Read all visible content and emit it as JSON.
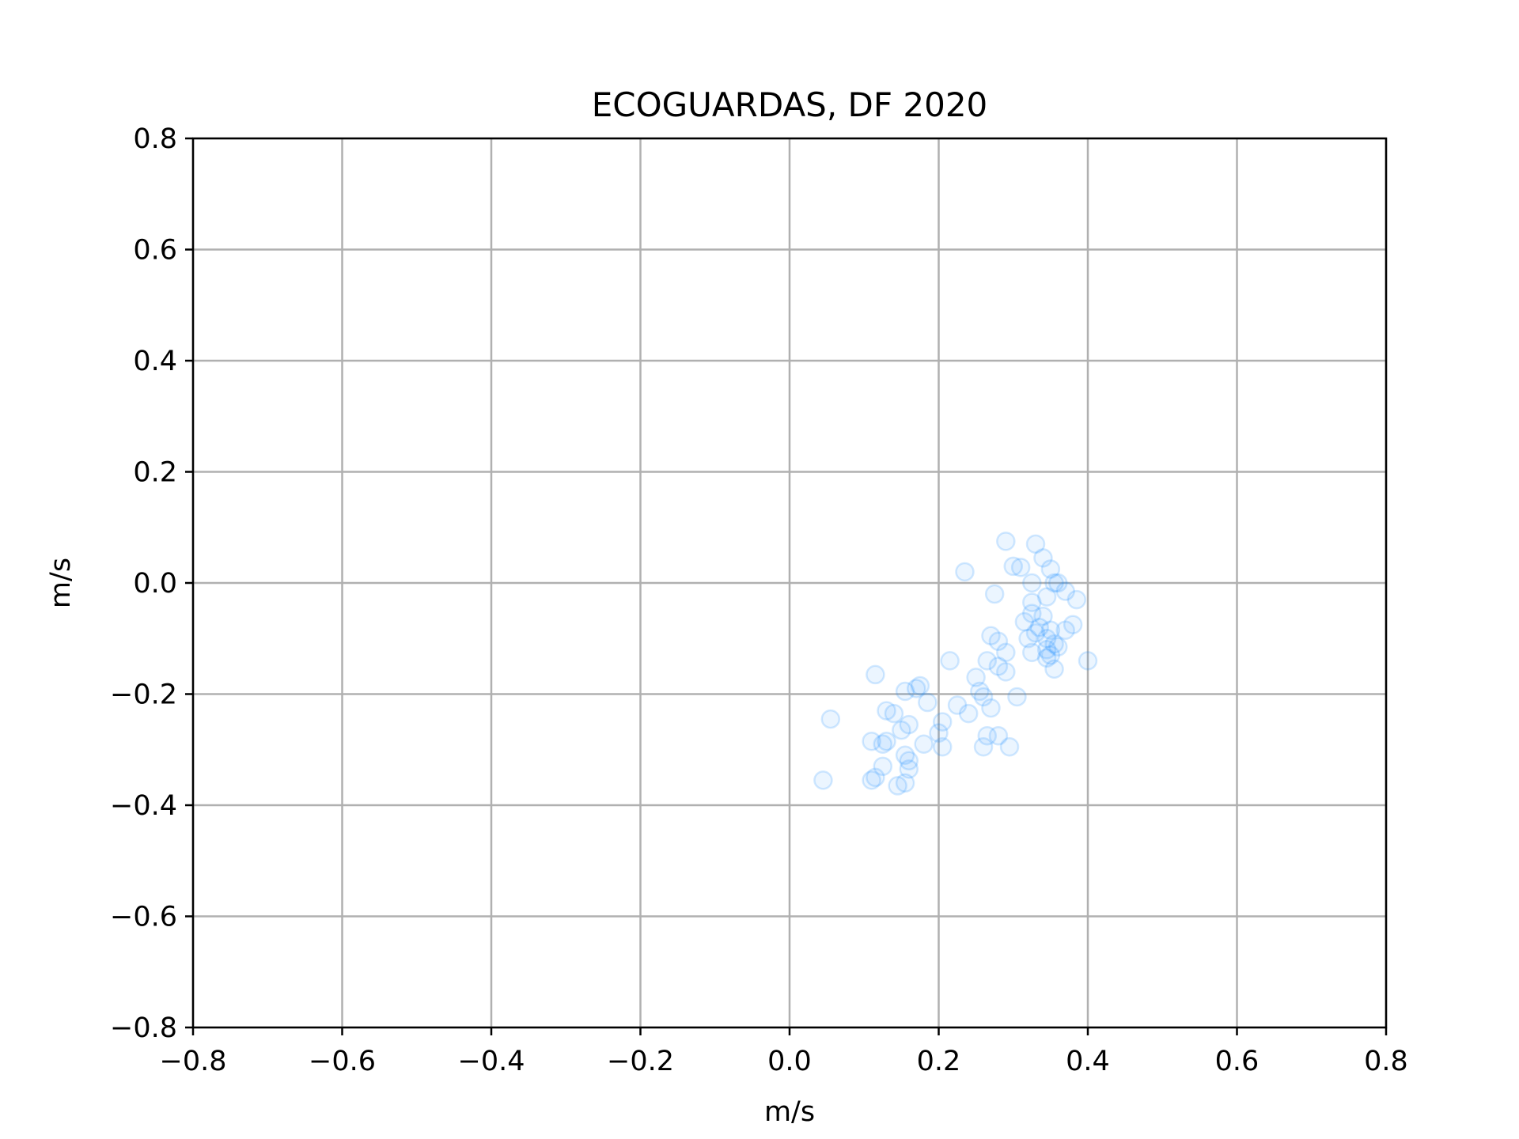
{
  "chart_data": {
    "type": "scatter",
    "title": "ECOGUARDAS, DF 2020",
    "xlabel": "m/s",
    "ylabel": "m/s",
    "xlim": [
      -0.8,
      0.8
    ],
    "ylim": [
      -0.8,
      0.8
    ],
    "xticks": [
      -0.8,
      -0.6,
      -0.4,
      -0.2,
      0.0,
      0.2,
      0.4,
      0.6,
      0.8
    ],
    "yticks": [
      -0.8,
      -0.6,
      -0.4,
      -0.2,
      0.0,
      0.2,
      0.4,
      0.6,
      0.8
    ],
    "xtick_labels": [
      "−0.8",
      "−0.6",
      "−0.4",
      "−0.2",
      "0.0",
      "0.2",
      "0.4",
      "0.6",
      "0.8"
    ],
    "ytick_labels": [
      "−0.8",
      "−0.6",
      "−0.4",
      "−0.2",
      "0.0",
      "0.2",
      "0.4",
      "0.6",
      "0.8"
    ],
    "grid": true,
    "marker": "hollow-circle",
    "marker_color": "#1e90ff",
    "marker_alpha": 0.15,
    "points": [
      [
        0.29,
        0.075
      ],
      [
        0.33,
        0.07
      ],
      [
        0.34,
        0.045
      ],
      [
        0.35,
        0.025
      ],
      [
        0.3,
        0.03
      ],
      [
        0.31,
        0.028
      ],
      [
        0.235,
        0.02
      ],
      [
        0.36,
        0.0
      ],
      [
        0.325,
        0.0
      ],
      [
        0.355,
        0.0
      ],
      [
        0.37,
        -0.015
      ],
      [
        0.385,
        -0.03
      ],
      [
        0.345,
        -0.025
      ],
      [
        0.275,
        -0.02
      ],
      [
        0.325,
        -0.035
      ],
      [
        0.325,
        -0.055
      ],
      [
        0.34,
        -0.06
      ],
      [
        0.315,
        -0.07
      ],
      [
        0.38,
        -0.075
      ],
      [
        0.335,
        -0.08
      ],
      [
        0.35,
        -0.085
      ],
      [
        0.37,
        -0.085
      ],
      [
        0.33,
        -0.09
      ],
      [
        0.27,
        -0.095
      ],
      [
        0.32,
        -0.1
      ],
      [
        0.345,
        -0.1
      ],
      [
        0.28,
        -0.105
      ],
      [
        0.355,
        -0.11
      ],
      [
        0.36,
        -0.115
      ],
      [
        0.345,
        -0.12
      ],
      [
        0.29,
        -0.125
      ],
      [
        0.325,
        -0.125
      ],
      [
        0.35,
        -0.13
      ],
      [
        0.345,
        -0.135
      ],
      [
        0.4,
        -0.14
      ],
      [
        0.215,
        -0.14
      ],
      [
        0.265,
        -0.14
      ],
      [
        0.28,
        -0.15
      ],
      [
        0.355,
        -0.155
      ],
      [
        0.29,
        -0.16
      ],
      [
        0.115,
        -0.165
      ],
      [
        0.25,
        -0.17
      ],
      [
        0.17,
        -0.19
      ],
      [
        0.175,
        -0.185
      ],
      [
        0.155,
        -0.195
      ],
      [
        0.255,
        -0.195
      ],
      [
        0.26,
        -0.205
      ],
      [
        0.305,
        -0.205
      ],
      [
        0.185,
        -0.215
      ],
      [
        0.225,
        -0.22
      ],
      [
        0.27,
        -0.225
      ],
      [
        0.13,
        -0.23
      ],
      [
        0.14,
        -0.235
      ],
      [
        0.24,
        -0.235
      ],
      [
        0.055,
        -0.245
      ],
      [
        0.205,
        -0.25
      ],
      [
        0.16,
        -0.255
      ],
      [
        0.15,
        -0.265
      ],
      [
        0.2,
        -0.27
      ],
      [
        0.265,
        -0.275
      ],
      [
        0.28,
        -0.275
      ],
      [
        0.11,
        -0.285
      ],
      [
        0.13,
        -0.285
      ],
      [
        0.125,
        -0.29
      ],
      [
        0.18,
        -0.29
      ],
      [
        0.205,
        -0.295
      ],
      [
        0.26,
        -0.295
      ],
      [
        0.295,
        -0.295
      ],
      [
        0.155,
        -0.31
      ],
      [
        0.16,
        -0.32
      ],
      [
        0.125,
        -0.33
      ],
      [
        0.16,
        -0.335
      ],
      [
        0.045,
        -0.355
      ],
      [
        0.11,
        -0.355
      ],
      [
        0.115,
        -0.35
      ],
      [
        0.155,
        -0.36
      ],
      [
        0.145,
        -0.365
      ]
    ]
  }
}
